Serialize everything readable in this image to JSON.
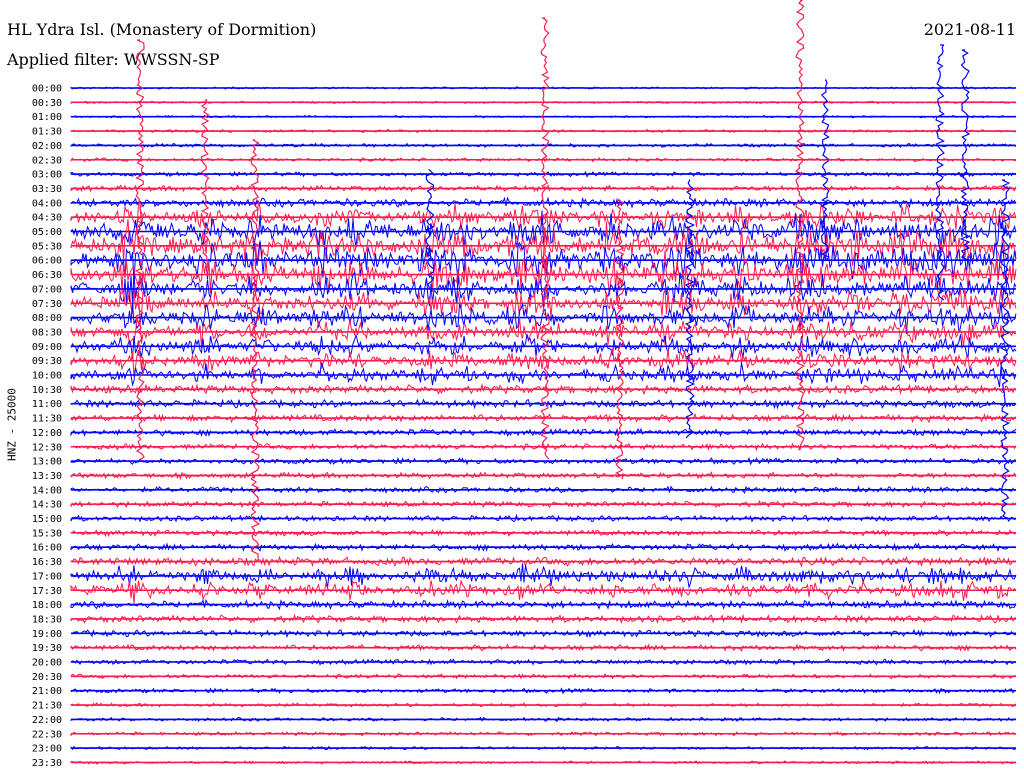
{
  "header": {
    "title": "HL Ydra Isl. (Monastery of Dormition)",
    "filter": "Applied filter: WWSSN-SP",
    "date": "2021-08-11"
  },
  "colors": {
    "odd": "#0000ff",
    "even": "#ff1a4d",
    "text": "#000000"
  },
  "chart_data": {
    "type": "line",
    "title": "HL Ydra Isl. (Monastery of Dormition)",
    "subtitle": "Applied filter: WWSSN-SP",
    "ylabel": "HNZ - 25000",
    "date": "2021-08-11",
    "row_labels": [
      "00:00",
      "00:30",
      "01:00",
      "01:30",
      "02:00",
      "02:30",
      "03:00",
      "03:30",
      "04:00",
      "04:30",
      "05:00",
      "05:30",
      "06:00",
      "06:30",
      "07:00",
      "07:30",
      "08:00",
      "08:30",
      "09:00",
      "09:30",
      "10:00",
      "10:30",
      "11:00",
      "11:30",
      "12:00",
      "12:30",
      "13:00",
      "13:30",
      "14:00",
      "14:30",
      "15:00",
      "15:30",
      "16:00",
      "16:30",
      "17:00",
      "17:30",
      "18:00",
      "18:30",
      "19:00",
      "19:30",
      "20:00",
      "20:30",
      "21:00",
      "21:30",
      "22:00",
      "22:30",
      "23:00",
      "23:30"
    ],
    "row_amplitude": [
      0.3,
      0.3,
      0.3,
      0.4,
      0.5,
      0.5,
      0.6,
      0.8,
      1.2,
      1.6,
      2.2,
      2.6,
      2.6,
      2.4,
      2.0,
      1.8,
      1.8,
      1.6,
      1.5,
      1.4,
      1.3,
      1.2,
      1.1,
      1.0,
      0.9,
      0.8,
      0.8,
      0.8,
      0.8,
      0.8,
      0.8,
      0.8,
      0.9,
      1.2,
      1.4,
      1.3,
      1.1,
      1.0,
      0.9,
      0.8,
      0.7,
      0.6,
      0.6,
      0.5,
      0.5,
      0.5,
      0.4,
      0.4
    ],
    "series_colors": [
      "#0000ff",
      "#ff1a4d"
    ]
  }
}
